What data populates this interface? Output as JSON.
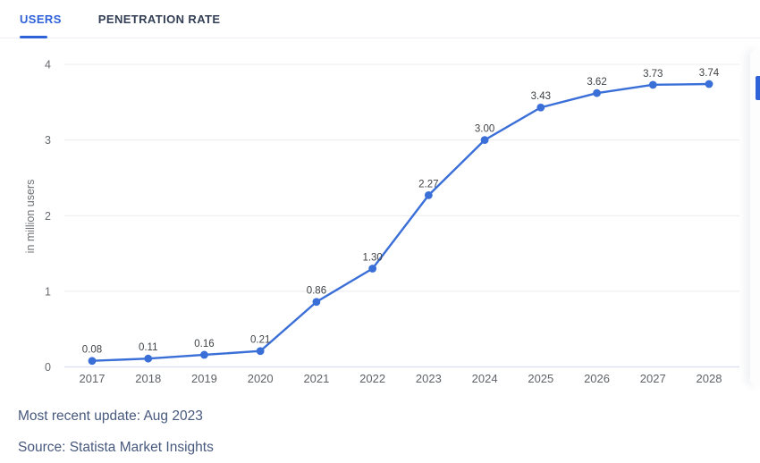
{
  "tabs": [
    {
      "label": "USERS",
      "active": true
    },
    {
      "label": "PENETRATION RATE",
      "active": false
    }
  ],
  "chart_data": {
    "type": "line",
    "x": [
      "2017",
      "2018",
      "2019",
      "2020",
      "2021",
      "2022",
      "2023",
      "2024",
      "2025",
      "2026",
      "2027",
      "2028"
    ],
    "series": [
      {
        "name": "Users",
        "values": [
          0.08,
          0.11,
          0.16,
          0.21,
          0.86,
          1.3,
          2.27,
          3.0,
          3.43,
          3.62,
          3.73,
          3.74
        ]
      }
    ],
    "point_labels": [
      "0.08",
      "0.11",
      "0.16",
      "0.21",
      "0.86",
      "1.30",
      "2.27",
      "3.00",
      "3.43",
      "3.62",
      "3.73",
      "3.74"
    ],
    "title": "",
    "xlabel": "",
    "ylabel": "in million users",
    "ylim": [
      0,
      4
    ],
    "yticks": [
      0,
      1,
      2,
      3,
      4
    ],
    "grid": true,
    "legend": "none"
  },
  "footer": {
    "update": "Most recent update: Aug 2023",
    "source": "Source: Statista Market Insights"
  },
  "colors": {
    "accent": "#2f62d9",
    "line": "#3a6fd8",
    "point": "#3a6fd8",
    "grid": "#ececec",
    "zero_axis": "#dde2f0",
    "tick_text": "#66696e",
    "xtick_text": "#5f6368",
    "point_label_text": "#3f4245",
    "ylabel_text": "#6f7276",
    "footer_text": "#47597e",
    "tab_inactive": "#333f55",
    "divider": "#edeff6"
  }
}
